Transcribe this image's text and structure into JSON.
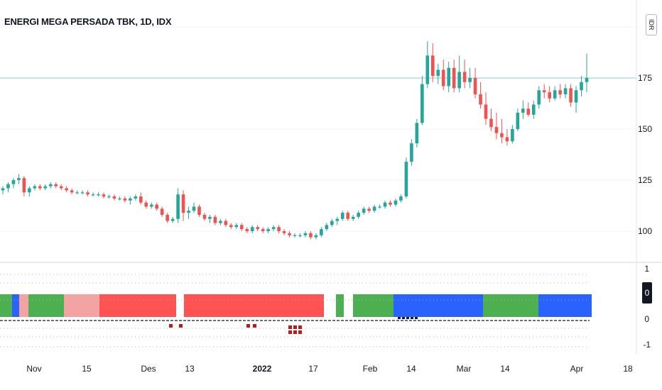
{
  "header": {
    "title": "ENERGI MEGA PERSADA TBK, 1D, IDX",
    "currency": "IDR"
  },
  "price_axis": [
    {
      "label": "175",
      "value": 175
    },
    {
      "label": "150",
      "value": 150
    },
    {
      "label": "125",
      "value": 125
    },
    {
      "label": "100",
      "value": 100
    }
  ],
  "indicator_axis": [
    {
      "label": "1",
      "value": 1
    },
    {
      "label": "0",
      "value": 0
    },
    {
      "label": "-1",
      "value": -1
    }
  ],
  "indicator_badge": "0",
  "time_axis": [
    {
      "label": "Nov",
      "bold": false
    },
    {
      "label": "15",
      "bold": false
    },
    {
      "label": "Des",
      "bold": false
    },
    {
      "label": "13",
      "bold": false
    },
    {
      "label": "2022",
      "bold": true
    },
    {
      "label": "17",
      "bold": false
    },
    {
      "label": "Feb",
      "bold": false
    },
    {
      "label": "14",
      "bold": false
    },
    {
      "label": "Mar",
      "bold": false
    },
    {
      "label": "14",
      "bold": false
    },
    {
      "label": "Apr",
      "bold": false
    },
    {
      "label": "18",
      "bold": false
    }
  ],
  "colors": {
    "up": "#26a69a",
    "down": "#ef5350",
    "green": "#4caf50",
    "blue": "#2962ff",
    "red": "#ff5252",
    "pink": "#f4a3a3",
    "grid": "#f0f3fa",
    "price_line": "#26a69a"
  },
  "chart_data": {
    "type": "candlestick",
    "symbol": "ENERGI MEGA PERSADA TBK",
    "interval": "1D",
    "exchange": "IDX",
    "ylim": [
      86,
      197
    ],
    "last_price_line": 175,
    "ohlc": [
      [
        120,
        122,
        118,
        121
      ],
      [
        121,
        124,
        119,
        123
      ],
      [
        123,
        126,
        121,
        125
      ],
      [
        125,
        128,
        123,
        126
      ],
      [
        126,
        127,
        117,
        119
      ],
      [
        119,
        122,
        117,
        121
      ],
      [
        121,
        123,
        120,
        122
      ],
      [
        122,
        123,
        120,
        121
      ],
      [
        121,
        123,
        120,
        122
      ],
      [
        122,
        124,
        121,
        123
      ],
      [
        123,
        124,
        121,
        122
      ],
      [
        122,
        123,
        120,
        121
      ],
      [
        121,
        122,
        119,
        120
      ],
      [
        120,
        121,
        118,
        119
      ],
      [
        119,
        120,
        118,
        119
      ],
      [
        119,
        120,
        118,
        119
      ],
      [
        119,
        120,
        117,
        118
      ],
      [
        118,
        119,
        117,
        118
      ],
      [
        118,
        119,
        117,
        118
      ],
      [
        118,
        119,
        116,
        117
      ],
      [
        117,
        118,
        116,
        117
      ],
      [
        117,
        118,
        115,
        116
      ],
      [
        116,
        117,
        115,
        116
      ],
      [
        116,
        117,
        114,
        115
      ],
      [
        115,
        117,
        113,
        116
      ],
      [
        116,
        118,
        115,
        117
      ],
      [
        117,
        119,
        113,
        114
      ],
      [
        114,
        115,
        111,
        112
      ],
      [
        112,
        114,
        111,
        113
      ],
      [
        113,
        114,
        110,
        111
      ],
      [
        111,
        112,
        107,
        108
      ],
      [
        108,
        109,
        104,
        105
      ],
      [
        105,
        107,
        104,
        106
      ],
      [
        106,
        121,
        104,
        118
      ],
      [
        118,
        120,
        105,
        109
      ],
      [
        109,
        112,
        106,
        110
      ],
      [
        110,
        114,
        109,
        112
      ],
      [
        112,
        113,
        107,
        108
      ],
      [
        108,
        109,
        105,
        106
      ],
      [
        106,
        108,
        104,
        107
      ],
      [
        107,
        108,
        103,
        104
      ],
      [
        104,
        106,
        103,
        105
      ],
      [
        105,
        106,
        102,
        103
      ],
      [
        103,
        104,
        101,
        102
      ],
      [
        102,
        104,
        101,
        103
      ],
      [
        103,
        104,
        100,
        101
      ],
      [
        101,
        102,
        99,
        100
      ],
      [
        100,
        103,
        99,
        102
      ],
      [
        102,
        103,
        100,
        101
      ],
      [
        101,
        102,
        99,
        100
      ],
      [
        100,
        102,
        99,
        101
      ],
      [
        101,
        103,
        100,
        102
      ],
      [
        102,
        103,
        99,
        100
      ],
      [
        100,
        101,
        98,
        99
      ],
      [
        99,
        100,
        97,
        98
      ],
      [
        98,
        99,
        97,
        98
      ],
      [
        98,
        99,
        97,
        98
      ],
      [
        98,
        100,
        97,
        99
      ],
      [
        99,
        100,
        96,
        97
      ],
      [
        97,
        99,
        96,
        98
      ],
      [
        98,
        102,
        97,
        101
      ],
      [
        101,
        104,
        100,
        103
      ],
      [
        103,
        106,
        102,
        105
      ],
      [
        105,
        107,
        103,
        106
      ],
      [
        106,
        110,
        105,
        109
      ],
      [
        109,
        110,
        105,
        106
      ],
      [
        106,
        108,
        105,
        107
      ],
      [
        107,
        110,
        106,
        109
      ],
      [
        109,
        112,
        108,
        111
      ],
      [
        111,
        112,
        109,
        110
      ],
      [
        110,
        113,
        109,
        112
      ],
      [
        112,
        113,
        111,
        112
      ],
      [
        112,
        115,
        111,
        114
      ],
      [
        114,
        115,
        112,
        113
      ],
      [
        113,
        116,
        112,
        115
      ],
      [
        115,
        118,
        114,
        117
      ],
      [
        117,
        136,
        116,
        134
      ],
      [
        134,
        145,
        132,
        143
      ],
      [
        143,
        155,
        141,
        153
      ],
      [
        153,
        176,
        152,
        172
      ],
      [
        172,
        193,
        170,
        186
      ],
      [
        186,
        192,
        173,
        176
      ],
      [
        176,
        182,
        172,
        179
      ],
      [
        179,
        184,
        169,
        171
      ],
      [
        171,
        183,
        168,
        180
      ],
      [
        180,
        184,
        168,
        170
      ],
      [
        170,
        186,
        168,
        178
      ],
      [
        178,
        184,
        170,
        173
      ],
      [
        173,
        180,
        170,
        175
      ],
      [
        175,
        180,
        165,
        167
      ],
      [
        167,
        173,
        160,
        162
      ],
      [
        162,
        168,
        152,
        155
      ],
      [
        155,
        160,
        149,
        151
      ],
      [
        151,
        158,
        145,
        148
      ],
      [
        148,
        155,
        143,
        146
      ],
      [
        146,
        150,
        142,
        144
      ],
      [
        144,
        152,
        143,
        150
      ],
      [
        150,
        160,
        149,
        158
      ],
      [
        158,
        164,
        155,
        160
      ],
      [
        160,
        163,
        156,
        157
      ],
      [
        157,
        164,
        155,
        162
      ],
      [
        162,
        171,
        160,
        169
      ],
      [
        169,
        172,
        165,
        168
      ],
      [
        168,
        171,
        163,
        165
      ],
      [
        165,
        171,
        164,
        169
      ],
      [
        169,
        172,
        165,
        167
      ],
      [
        167,
        172,
        165,
        170
      ],
      [
        170,
        172,
        161,
        163
      ],
      [
        163,
        171,
        158,
        169
      ],
      [
        169,
        176,
        166,
        173
      ],
      [
        173,
        187,
        168,
        175
      ]
    ],
    "indicator_segments": [
      {
        "color": "green"
      },
      {
        "color": "blue"
      },
      {
        "color": "pink"
      },
      {
        "color": "green"
      },
      {
        "color": "pink"
      },
      {
        "color": "red"
      },
      {
        "color": "red"
      },
      {
        "color": "green"
      },
      {
        "color": "green"
      },
      {
        "color": "blue"
      },
      {
        "color": "green"
      },
      {
        "color": "blue"
      }
    ]
  }
}
